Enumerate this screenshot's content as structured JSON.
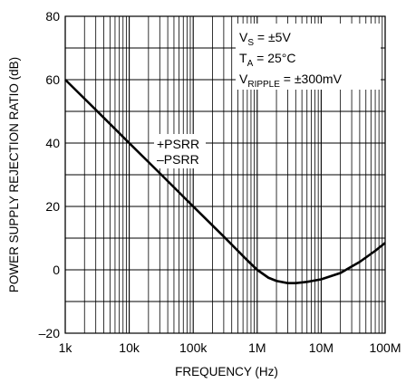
{
  "chart_data": {
    "type": "line",
    "xscale": "log",
    "xlabel": "FREQUENCY (Hz)",
    "ylabel": "POWER SUPPLY REJECTION RATIO (dB)",
    "xlim": [
      1000,
      100000000
    ],
    "ylim": [
      -20,
      80
    ],
    "x_tick_labels": [
      "1k",
      "10k",
      "100k",
      "1M",
      "10M",
      "100M"
    ],
    "y_tick_labels": [
      "–20",
      "0",
      "20",
      "40",
      "60",
      "80"
    ],
    "grid": true,
    "series": [
      {
        "name": "+PSRR / –PSRR",
        "x": [
          1000,
          3000,
          10000,
          30000,
          100000,
          300000,
          700000,
          1000000,
          1500000,
          2000000,
          3000000,
          4000000,
          6000000,
          10000000,
          20000000,
          40000000,
          70000000,
          100000000
        ],
        "y": [
          60,
          50.5,
          40,
          30.5,
          20,
          10.5,
          3,
          0,
          -2.5,
          -3.5,
          -4.2,
          -4.2,
          -3.8,
          -3,
          -1,
          2.5,
          6,
          8.5
        ]
      }
    ],
    "annotations": {
      "series_label_1": "+PSRR",
      "series_label_2": "–PSRR",
      "cond_vs_main": "V",
      "cond_vs_sub": "S",
      "cond_vs_rest": " = ±5V",
      "cond_ta_main": "T",
      "cond_ta_sub": "A",
      "cond_ta_rest": " = 25°C",
      "cond_vr_main": "V",
      "cond_vr_sub": "RIPPLE",
      "cond_vr_rest": " = ±300mV"
    }
  }
}
